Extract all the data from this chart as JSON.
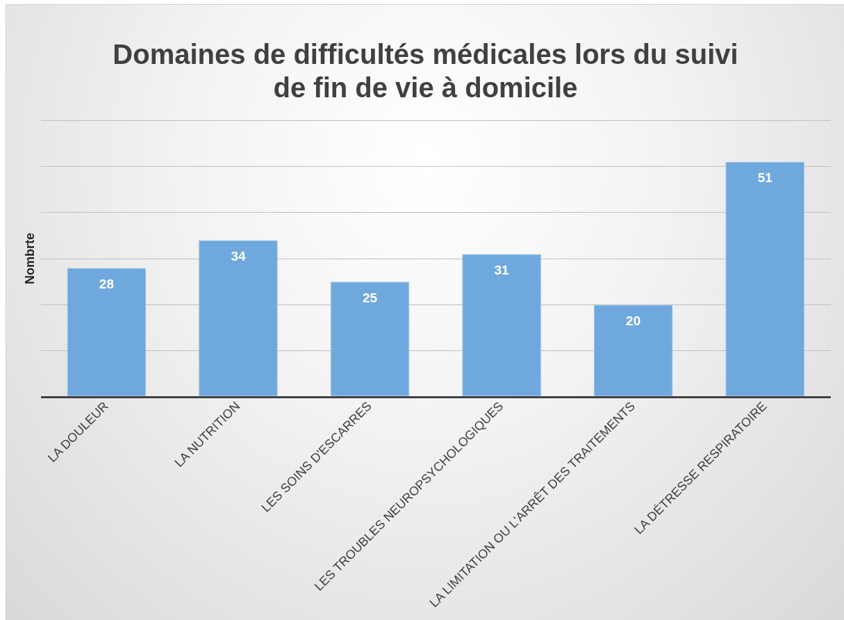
{
  "chart_data": {
    "type": "bar",
    "title": "Domaines de difficultés médicales lors du suivi de fin de vie à domicile",
    "ylabel": "Nombrte",
    "categories": [
      "LA DOULEUR",
      "LA NUTRITION",
      "LES SOINS D'ESCARRES",
      "LES TROUBLES NEUROPSYCHOLOGIQUES",
      "LA LIMITATION OU L'ARRÊT DES TRAITEMENTS",
      "LA DÉTRESSE RESPIRATOIRE"
    ],
    "values": [
      28,
      34,
      25,
      31,
      20,
      51
    ],
    "color": "#6fa8dc",
    "grid": "y",
    "tick_labels": "x",
    "data_labels": true,
    "legend": false
  }
}
